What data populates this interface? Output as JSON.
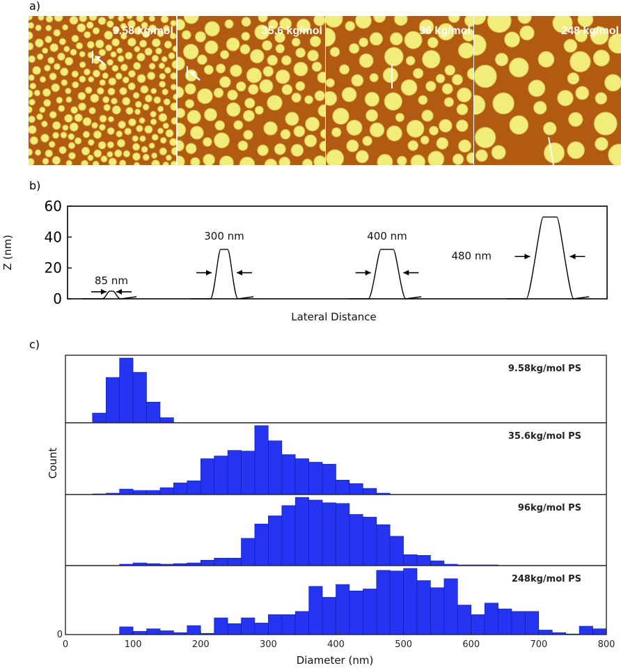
{
  "panel_labels": {
    "a": "a)",
    "b": "b)",
    "c": "c)"
  },
  "afm_images": [
    {
      "label": "9.58 kg/mol",
      "scale": "small",
      "marker": "arrow"
    },
    {
      "label": "35.6 kg/mol",
      "scale": "medium",
      "marker": "arrow"
    },
    {
      "label": "96 kg/mol",
      "scale": "large",
      "marker": "line"
    },
    {
      "label": "248 kg/mol",
      "scale": "xlarge",
      "marker": "line"
    }
  ],
  "colors": {
    "background": "#b05a12",
    "droplet": "#f2ec7a",
    "droplet_edge": "#d8b440",
    "bar": "#2434f0"
  },
  "chart_data": [
    {
      "type": "line",
      "title": "",
      "xlabel": "Lateral Distance",
      "ylabel": "Z (nm)",
      "ylim": [
        0,
        60
      ],
      "yticks": [
        "0",
        "20",
        "40",
        "60"
      ],
      "profiles": [
        {
          "width_label": "85 nm",
          "height": 5
        },
        {
          "width_label": "300 nm",
          "height": 32
        },
        {
          "width_label": "400 nm",
          "height": 32
        },
        {
          "width_label": "480 nm",
          "height": 53
        }
      ]
    },
    {
      "type": "bar",
      "xlabel": "Diameter (nm)",
      "ylabel": "Count",
      "xlim": [
        0,
        800
      ],
      "xticks": [
        "0",
        "100",
        "200",
        "300",
        "400",
        "500",
        "600",
        "700",
        "800"
      ],
      "bin_width": 20,
      "y_zero_label": "0",
      "series": [
        {
          "name": "9.58kg/mol PS",
          "bin_starts": [
            40,
            60,
            80,
            100,
            120,
            140
          ],
          "counts": [
            0.15,
            0.7,
            1.0,
            0.78,
            0.32,
            0.08
          ]
        },
        {
          "name": "35.6kg/mol PS",
          "bin_starts": [
            40,
            60,
            80,
            100,
            120,
            140,
            160,
            180,
            200,
            220,
            240,
            260,
            280,
            300,
            320,
            340,
            360,
            380,
            400,
            420,
            440,
            460
          ],
          "counts": [
            0.01,
            0.02,
            0.08,
            0.06,
            0.06,
            0.1,
            0.17,
            0.2,
            0.52,
            0.56,
            0.64,
            0.63,
            1.0,
            0.78,
            0.58,
            0.52,
            0.47,
            0.44,
            0.21,
            0.16,
            0.09,
            0.02
          ]
        },
        {
          "name": "96kg/mol PS",
          "bin_starts": [
            80,
            100,
            120,
            140,
            160,
            180,
            200,
            220,
            240,
            260,
            280,
            300,
            320,
            340,
            360,
            380,
            400,
            420,
            440,
            460,
            480,
            500,
            520,
            540,
            560,
            580,
            600,
            620,
            640,
            660
          ],
          "counts": [
            0.02,
            0.04,
            0.03,
            0.02,
            0.03,
            0.04,
            0.08,
            0.11,
            0.11,
            0.4,
            0.61,
            0.73,
            0.88,
            1.0,
            0.96,
            0.92,
            0.91,
            0.75,
            0.71,
            0.6,
            0.43,
            0.16,
            0.15,
            0.07,
            0.02,
            0.01,
            0.01,
            0.01,
            0.0,
            0.0
          ]
        },
        {
          "name": "248kg/mol PS",
          "bin_starts": [
            80,
            100,
            120,
            140,
            160,
            180,
            200,
            220,
            240,
            260,
            280,
            300,
            320,
            340,
            360,
            380,
            400,
            420,
            440,
            460,
            480,
            500,
            520,
            540,
            560,
            580,
            600,
            620,
            640,
            660,
            680,
            700,
            720,
            740,
            760,
            780
          ],
          "counts": [
            0.12,
            0.05,
            0.09,
            0.06,
            0.03,
            0.14,
            0.02,
            0.26,
            0.17,
            0.26,
            0.18,
            0.31,
            0.31,
            0.36,
            0.75,
            0.58,
            0.78,
            0.68,
            0.71,
            1.0,
            0.99,
            1.03,
            0.84,
            0.73,
            0.87,
            0.46,
            0.31,
            0.49,
            0.4,
            0.36,
            0.36,
            0.07,
            0.03,
            0.01,
            0.13,
            0.09
          ]
        }
      ]
    }
  ]
}
